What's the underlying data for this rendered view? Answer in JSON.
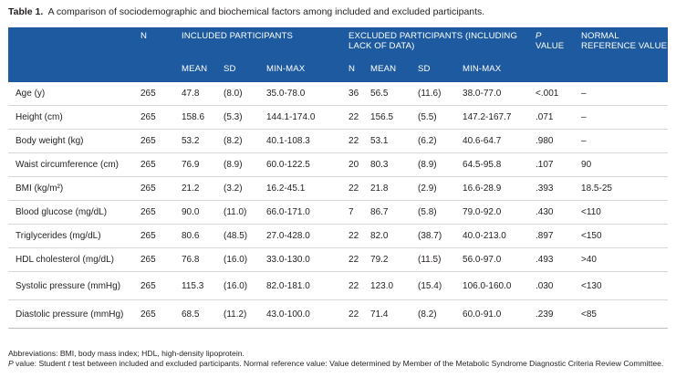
{
  "caption": {
    "label": "Table 1.",
    "text": "A comparison of sociodemographic and biochemical factors among included and excluded participants."
  },
  "header": {
    "n": "N",
    "included_group": "INCLUDED PARTICIPANTS",
    "excluded_group": "EXCLUDED PARTICIPANTS (INCLUDING LACK OF DATA)",
    "p_value_italic": "P",
    "p_value_rest": "VALUE",
    "normal_reference": "NORMAL REFERENCE VALUE",
    "mean": "MEAN",
    "sd": "SD",
    "min_max": "MIN-MAX",
    "excl_n": "N",
    "excl_mean": "MEAN",
    "excl_sd": "SD",
    "excl_min_max": "MIN-MAX"
  },
  "rows": [
    {
      "variable": "Age (y)",
      "n": "265",
      "mean": "47.8",
      "sd": "(8.0)",
      "minmax": "35.0-78.0",
      "ex_n": "36",
      "ex_mean": "56.5",
      "ex_sd": "(11.6)",
      "ex_minmax": "38.0-77.0",
      "p": "<.001",
      "ref": "–"
    },
    {
      "variable": "Height (cm)",
      "n": "265",
      "mean": "158.6",
      "sd": "(5.3)",
      "minmax": "144.1-174.0",
      "ex_n": "22",
      "ex_mean": "156.5",
      "ex_sd": "(5.5)",
      "ex_minmax": "147.2-167.7",
      "p": ".071",
      "ref": "–"
    },
    {
      "variable": "Body weight (kg)",
      "n": "265",
      "mean": "53.2",
      "sd": "(8.2)",
      "minmax": "40.1-108.3",
      "ex_n": "22",
      "ex_mean": "53.1",
      "ex_sd": "(6.2)",
      "ex_minmax": "40.6-64.7",
      "p": ".980",
      "ref": "–"
    },
    {
      "variable": "Waist circumference (cm)",
      "n": "265",
      "mean": "76.9",
      "sd": "(8.9)",
      "minmax": "60.0-122.5",
      "ex_n": "20",
      "ex_mean": "80.3",
      "ex_sd": "(8.9)",
      "ex_minmax": "64.5-95.8",
      "p": ".107",
      "ref": "90"
    },
    {
      "variable": "BMI (kg/m²)",
      "n": "265",
      "mean": "21.2",
      "sd": "(3.2)",
      "minmax": "16.2-45.1",
      "ex_n": "22",
      "ex_mean": "21.8",
      "ex_sd": "(2.9)",
      "ex_minmax": "16.6-28.9",
      "p": ".393",
      "ref": "18.5-25"
    },
    {
      "variable": "Blood glucose (mg/dL)",
      "n": "265",
      "mean": "90.0",
      "sd": "(11.0)",
      "minmax": "66.0-171.0",
      "ex_n": "7",
      "ex_mean": "86.7",
      "ex_sd": "(5.8)",
      "ex_minmax": "79.0-92.0",
      "p": ".430",
      "ref": "<110"
    },
    {
      "variable": "Triglycerides (mg/dL)",
      "n": "265",
      "mean": "80.6",
      "sd": "(48.5)",
      "minmax": "27.0-428.0",
      "ex_n": "22",
      "ex_mean": "82.0",
      "ex_sd": "(38.7)",
      "ex_minmax": "40.0-213.0",
      "p": ".897",
      "ref": "<150"
    },
    {
      "variable": "HDL cholesterol (mg/dL)",
      "n": "265",
      "mean": "76.8",
      "sd": "(16.0)",
      "minmax": "33.0-130.0",
      "ex_n": "22",
      "ex_mean": "79.2",
      "ex_sd": "(11.5)",
      "ex_minmax": "56.0-97.0",
      "p": ".493",
      "ref": ">40"
    },
    {
      "variable": "Systolic pressure (mmHg)",
      "n": "265",
      "mean": "115.3",
      "sd": "(16.0)",
      "minmax": "82.0-181.0",
      "ex_n": "22",
      "ex_mean": "123.0",
      "ex_sd": "(15.4)",
      "ex_minmax": "106.0-160.0",
      "p": ".030",
      "ref": "<130"
    },
    {
      "variable": "Diastolic pressure (mmHg)",
      "n": "265",
      "mean": "68.5",
      "sd": "(11.2)",
      "minmax": "43.0-100.0",
      "ex_n": "22",
      "ex_mean": "71.4",
      "ex_sd": "(8.2)",
      "ex_minmax": "60.0-91.0",
      "p": ".239",
      "ref": "<85"
    }
  ],
  "footnotes": {
    "abbreviations": "Abbreviations: BMI, body mass index; HDL, high-density lipoprotein.",
    "p_italic": "P",
    "p_note_1": " value: Student ",
    "t_italic": "t",
    "p_note_2": " test between included and excluded participants. Normal reference value: Value determined by Member of the Metabolic Syndrome Diagnostic Criteria Review Committee."
  },
  "colors": {
    "header_bg": "#1d5aa0",
    "header_text": "#ffffff",
    "row_border": "#d6d6d6"
  }
}
